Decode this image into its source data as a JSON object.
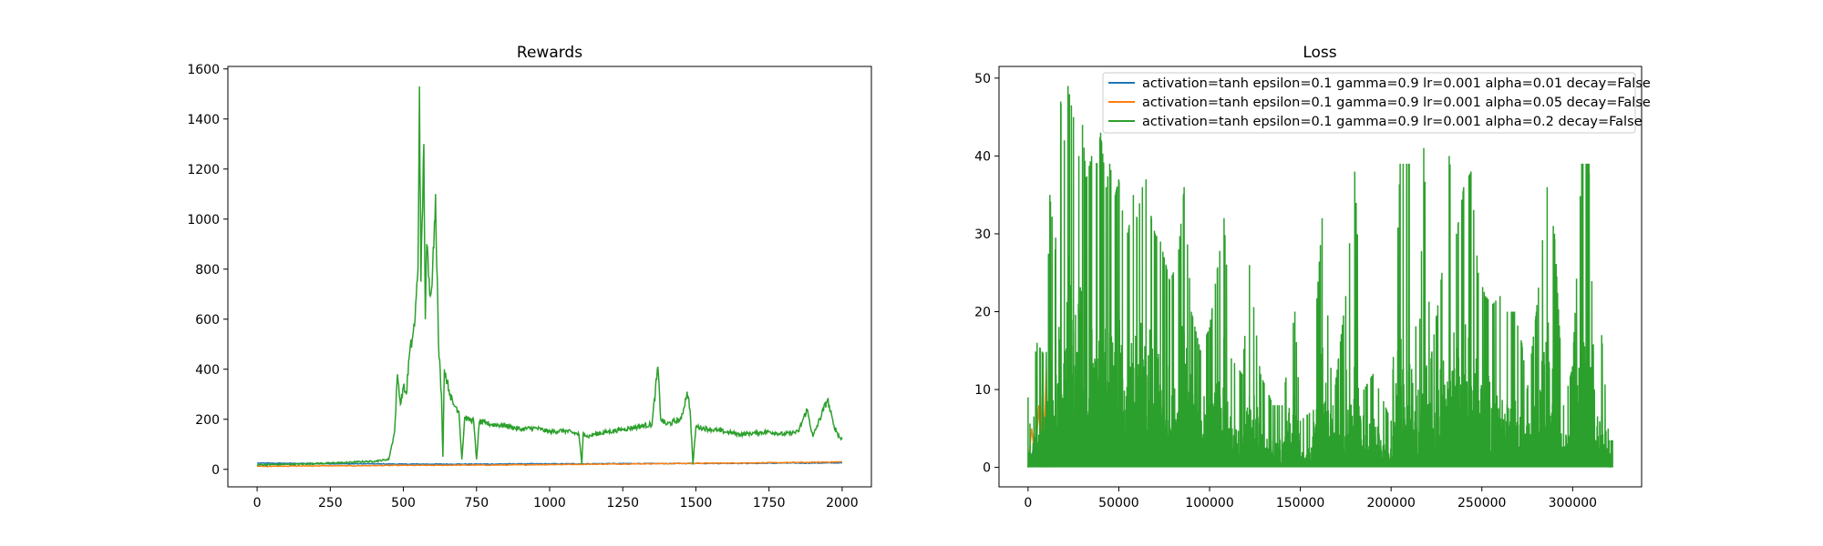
{
  "chart_data": [
    {
      "type": "line",
      "title": "Rewards",
      "xlabel": "",
      "ylabel": "",
      "xlim": [
        -100,
        2100
      ],
      "ylim": [
        -70,
        1610
      ],
      "xticks": [
        0,
        250,
        500,
        750,
        1000,
        1250,
        1500,
        1750,
        2000
      ],
      "xtick_labels": [
        "0",
        "250",
        "500",
        "750",
        "1000",
        "1250",
        "1500",
        "1750",
        "2000"
      ],
      "yticks": [
        0,
        200,
        400,
        600,
        800,
        1000,
        1200,
        1400,
        1600
      ],
      "ytick_labels": [
        "0",
        "200",
        "400",
        "600",
        "800",
        "1000",
        "1200",
        "1400",
        "1600"
      ],
      "grid": false,
      "series": [
        {
          "color": "#1f77b4",
          "x": [
            0,
            100,
            200,
            300,
            400,
            500,
            600,
            700,
            800,
            900,
            1000,
            1100,
            1200,
            1300,
            1400,
            1500,
            1600,
            1700,
            1800,
            1900,
            2000
          ],
          "y": [
            25,
            24,
            23,
            22,
            22,
            21,
            21,
            21,
            21,
            22,
            22,
            22,
            23,
            23,
            23,
            24,
            24,
            24,
            25,
            25,
            26
          ]
        },
        {
          "color": "#ff7f0e",
          "x": [
            0,
            100,
            200,
            300,
            400,
            500,
            600,
            700,
            800,
            900,
            1000,
            1100,
            1200,
            1300,
            1400,
            1500,
            1600,
            1700,
            1800,
            1900,
            2000
          ],
          "y": [
            12,
            13,
            14,
            14,
            15,
            16,
            16,
            17,
            17,
            18,
            19,
            20,
            21,
            22,
            23,
            24,
            25,
            26,
            27,
            28,
            30
          ]
        },
        {
          "color": "#2ca02c",
          "x": [
            0,
            50,
            100,
            150,
            200,
            250,
            300,
            350,
            400,
            450,
            470,
            480,
            490,
            500,
            510,
            520,
            530,
            540,
            550,
            555,
            560,
            570,
            575,
            580,
            590,
            600,
            610,
            620,
            630,
            635,
            640,
            650,
            660,
            670,
            680,
            690,
            700,
            710,
            720,
            740,
            750,
            760,
            780,
            800,
            850,
            900,
            950,
            1000,
            1050,
            1100,
            1110,
            1115,
            1120,
            1130,
            1150,
            1200,
            1250,
            1300,
            1350,
            1370,
            1380,
            1400,
            1450,
            1470,
            1480,
            1490,
            1500,
            1550,
            1600,
            1650,
            1700,
            1750,
            1800,
            1850,
            1880,
            1900,
            1950,
            1970,
            1990,
            2000
          ],
          "y": [
            18,
            19,
            20,
            21,
            23,
            25,
            27,
            30,
            32,
            40,
            150,
            380,
            260,
            330,
            300,
            450,
            520,
            600,
            800,
            1530,
            750,
            1300,
            600,
            900,
            700,
            800,
            1100,
            500,
            300,
            50,
            400,
            350,
            300,
            260,
            250,
            230,
            40,
            210,
            200,
            195,
            40,
            190,
            185,
            180,
            175,
            160,
            165,
            150,
            155,
            140,
            20,
            150,
            140,
            130,
            140,
            150,
            160,
            170,
            180,
            410,
            200,
            180,
            200,
            310,
            240,
            20,
            170,
            160,
            150,
            140,
            145,
            150,
            140,
            150,
            240,
            130,
            280,
            180,
            130,
            120
          ]
        }
      ]
    },
    {
      "type": "line",
      "title": "Loss",
      "xlabel": "",
      "ylabel": "",
      "xlim": [
        -16000,
        338000
      ],
      "ylim": [
        -2.5,
        51.5
      ],
      "xticks": [
        0,
        50000,
        100000,
        150000,
        200000,
        250000,
        300000
      ],
      "xtick_labels": [
        "0",
        "50000",
        "100000",
        "150000",
        "200000",
        "250000",
        "300000"
      ],
      "yticks": [
        0,
        10,
        20,
        30,
        40,
        50
      ],
      "ytick_labels": [
        "0",
        "10",
        "20",
        "30",
        "40",
        "50"
      ],
      "grid": false,
      "legend_position": "top-right",
      "series": [
        {
          "name": "activation=tanh epsilon=0.1 gamma=0.9 lr=0.001 alpha=0.01 decay=False",
          "color": "#1f77b4",
          "x": [
            0,
            1000,
            2000,
            3000,
            4000,
            5000,
            6000,
            7000,
            8000
          ],
          "y": [
            0,
            2,
            0.5,
            3,
            1,
            2.5,
            0.5,
            2,
            0
          ]
        },
        {
          "name": "activation=tanh epsilon=0.1 gamma=0.9 lr=0.001 alpha=0.05 decay=False",
          "color": "#ff7f0e",
          "x": [
            0,
            2000,
            4000,
            6000,
            7000,
            8000,
            9000,
            10000,
            11000
          ],
          "y": [
            0,
            5,
            1,
            8,
            2,
            12,
            3,
            13,
            0
          ]
        },
        {
          "name": "activation=tanh epsilon=0.1 gamma=0.9 lr=0.001 alpha=0.2 decay=False",
          "color": "#2ca02c",
          "peaks": [
            [
              0,
              9
            ],
            [
              5000,
              16
            ],
            [
              10000,
              14
            ],
            [
              12000,
              35
            ],
            [
              15000,
              28
            ],
            [
              18000,
              47
            ],
            [
              20000,
              42
            ],
            [
              22000,
              49
            ],
            [
              25000,
              45
            ],
            [
              28000,
              40
            ],
            [
              30000,
              44
            ],
            [
              32000,
              37
            ],
            [
              35000,
              40
            ],
            [
              38000,
              39
            ],
            [
              40000,
              43
            ],
            [
              43000,
              36
            ],
            [
              45000,
              39
            ],
            [
              48000,
              35
            ],
            [
              50000,
              37
            ],
            [
              52000,
              33
            ],
            [
              55000,
              30
            ],
            [
              58000,
              35
            ],
            [
              60000,
              32
            ],
            [
              63000,
              36
            ],
            [
              65000,
              37
            ],
            [
              68000,
              32
            ],
            [
              70000,
              30
            ],
            [
              73000,
              29
            ],
            [
              75000,
              27
            ],
            [
              78000,
              24
            ],
            [
              80000,
              25
            ],
            [
              83000,
              28
            ],
            [
              86000,
              36
            ],
            [
              90000,
              20
            ],
            [
              95000,
              15
            ],
            [
              100000,
              18
            ],
            [
              108000,
              32
            ],
            [
              112000,
              14
            ],
            [
              118000,
              12
            ],
            [
              122000,
              26
            ],
            [
              128000,
              12
            ],
            [
              135000,
              8
            ],
            [
              140000,
              8
            ],
            [
              147000,
              20
            ],
            [
              150000,
              6
            ],
            [
              155000,
              7
            ],
            [
              162000,
              32
            ],
            [
              168000,
              8
            ],
            [
              175000,
              22
            ],
            [
              180000,
              38
            ],
            [
              185000,
              10
            ],
            [
              190000,
              12
            ],
            [
              200000,
              6
            ],
            [
              205000,
              39
            ],
            [
              210000,
              39
            ],
            [
              215000,
              10
            ],
            [
              218000,
              41
            ],
            [
              222000,
              14
            ],
            [
              228000,
              25
            ],
            [
              232000,
              40
            ],
            [
              236000,
              30
            ],
            [
              240000,
              36
            ],
            [
              244000,
              38
            ],
            [
              248000,
              25
            ],
            [
              252000,
              22
            ],
            [
              256000,
              21
            ],
            [
              260000,
              22
            ],
            [
              264000,
              20
            ],
            [
              268000,
              20
            ],
            [
              272000,
              16
            ],
            [
              275000,
              10
            ],
            [
              280000,
              20
            ],
            [
              286000,
              36
            ],
            [
              290000,
              30
            ],
            [
              295000,
              8
            ],
            [
              300000,
              13
            ],
            [
              305000,
              39
            ],
            [
              309000,
              39
            ],
            [
              312000,
              10
            ],
            [
              316000,
              17
            ],
            [
              320000,
              3.5
            ],
            [
              322000,
              3.5
            ]
          ]
        }
      ]
    }
  ]
}
